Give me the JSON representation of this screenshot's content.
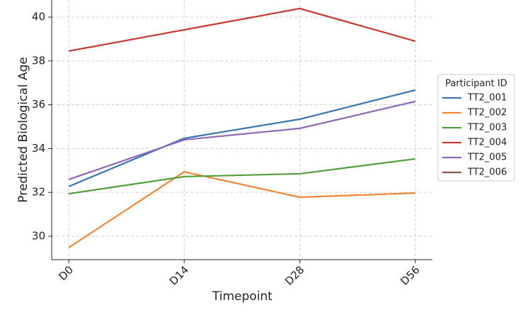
{
  "chart_data": {
    "type": "line",
    "x_label": "Timepoint",
    "y_label": "Predicted Biological Age",
    "categories": [
      "D0",
      "D14",
      "D28",
      "D56"
    ],
    "series": [
      {
        "name": "TT2_001",
        "color": "#3b75af",
        "values": [
          32.27,
          34.47,
          35.34,
          36.67
        ]
      },
      {
        "name": "TT2_002",
        "color": "#ef8636",
        "values": [
          29.48,
          32.94,
          31.78,
          31.97
        ]
      },
      {
        "name": "TT2_003",
        "color": "#519e3e",
        "values": [
          31.94,
          32.72,
          32.85,
          33.53
        ]
      },
      {
        "name": "TT2_004",
        "color": "#c53a32",
        "values": [
          38.45,
          39.42,
          40.39,
          38.9
        ]
      },
      {
        "name": "TT2_005",
        "color": "#8d69b8",
        "values": [
          32.59,
          34.4,
          34.92,
          36.15
        ]
      },
      {
        "name": "TT2_006",
        "color": "#84584e",
        "values": [
          null,
          null,
          null,
          null
        ]
      }
    ],
    "legend_title": "Participant ID",
    "legend": "right",
    "ylim": [
      28.93,
      40.78
    ],
    "yticks": [
      30,
      32,
      34,
      36,
      38,
      40
    ],
    "grid": true
  }
}
